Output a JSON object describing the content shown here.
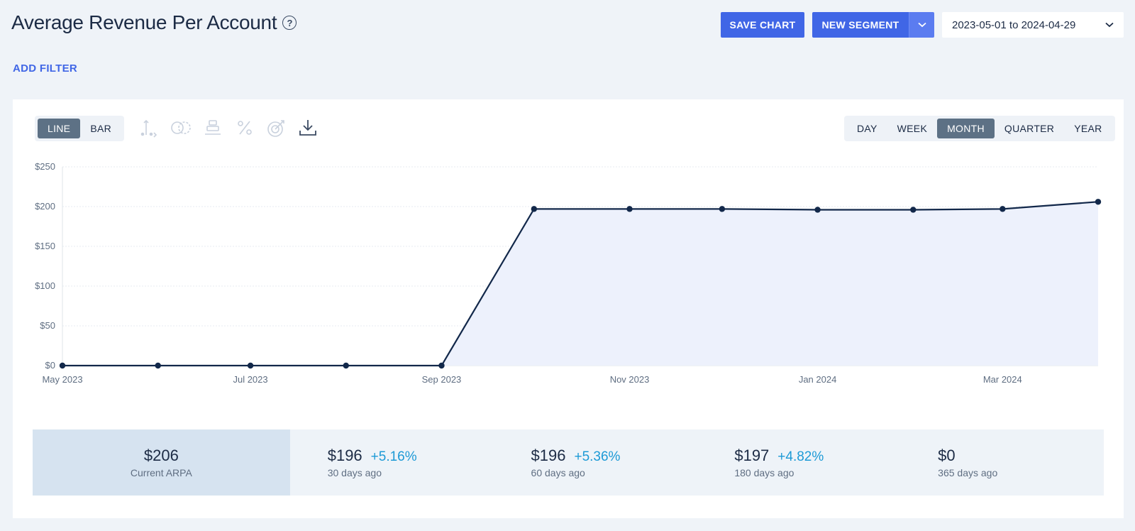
{
  "header": {
    "title": "Average Revenue Per Account",
    "help_glyph": "?",
    "save_chart_label": "SAVE CHART",
    "new_segment_label": "NEW SEGMENT",
    "date_range": "2023-05-01 to 2024-04-29"
  },
  "filters": {
    "add_filter_label": "ADD FILTER"
  },
  "toolbar": {
    "chart_types": [
      {
        "label": "LINE",
        "active": true
      },
      {
        "label": "BAR",
        "active": false
      }
    ],
    "intervals": [
      {
        "label": "DAY",
        "active": false
      },
      {
        "label": "WEEK",
        "active": false
      },
      {
        "label": "MONTH",
        "active": true
      },
      {
        "label": "QUARTER",
        "active": false
      },
      {
        "label": "YEAR",
        "active": false
      }
    ],
    "tool_icons": [
      "axis-icon",
      "compare-icon",
      "stack-icon",
      "percent-icon",
      "goal-icon",
      "download-icon"
    ]
  },
  "chart_data": {
    "type": "area",
    "x": [
      "2023-05",
      "2023-06",
      "2023-07",
      "2023-08",
      "2023-09",
      "2023-10",
      "2023-11",
      "2023-12",
      "2024-01",
      "2024-02",
      "2024-03",
      "2024-04"
    ],
    "series": [
      {
        "values": [
          0,
          0,
          0,
          0,
          0,
          197,
          197,
          197,
          196,
          196,
          197,
          206
        ]
      }
    ],
    "ylim": [
      0,
      250
    ],
    "y_ticks": [
      "$0",
      "$50",
      "$100",
      "$150",
      "$200",
      "$250"
    ],
    "x_tick_labels": [
      "May 2023",
      "Jul 2023",
      "Sep 2023",
      "Nov 2023",
      "Jan 2024",
      "Mar 2024"
    ],
    "grid": true,
    "line_color": "#12284a",
    "fill_color": "#edf1fc"
  },
  "stats": {
    "current": {
      "value": "$206",
      "label": "Current ARPA"
    },
    "history": [
      {
        "value": "$196",
        "change": "+5.16%",
        "label": "30 days ago"
      },
      {
        "value": "$196",
        "change": "+5.36%",
        "label": "60 days ago"
      },
      {
        "value": "$197",
        "change": "+4.82%",
        "label": "180 days ago"
      },
      {
        "value": "$0",
        "change": "",
        "label": "365 days ago"
      }
    ]
  },
  "colors": {
    "primary": "#4066e6",
    "accent_positive": "#1d9ad6",
    "active_toggle": "#5d7185"
  }
}
